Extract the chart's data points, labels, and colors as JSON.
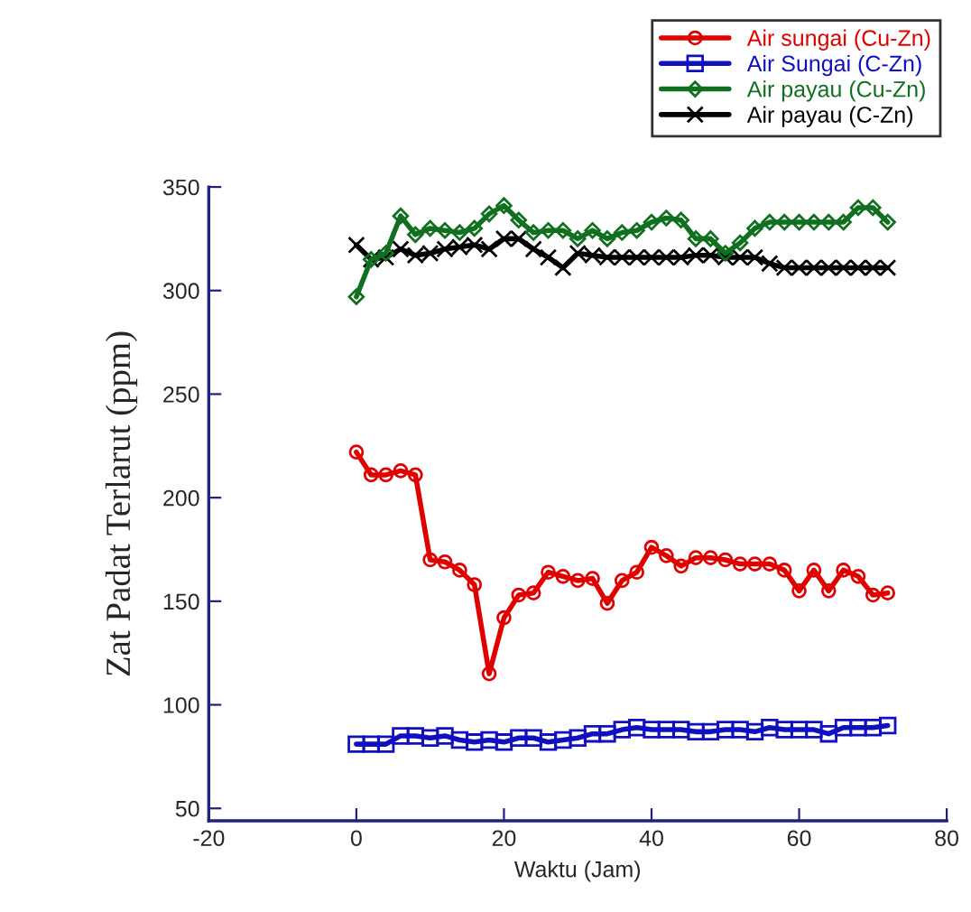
{
  "chart_data": {
    "type": "line",
    "xlabel": "Waktu (Jam)",
    "ylabel": "Zat Padat Terlarut (ppm)",
    "x": [
      0,
      2,
      4,
      6,
      8,
      10,
      12,
      14,
      16,
      18,
      20,
      22,
      24,
      26,
      28,
      30,
      32,
      34,
      36,
      38,
      40,
      42,
      44,
      46,
      48,
      50,
      52,
      54,
      56,
      58,
      60,
      62,
      64,
      66,
      68,
      70,
      72
    ],
    "series": [
      {
        "name": "Air sungai (Cu-Zn)",
        "color": "#e00000",
        "marker": "circle",
        "values": [
          222,
          211,
          211,
          213,
          211,
          170,
          169,
          165,
          158,
          115,
          142,
          153,
          154,
          164,
          162,
          160,
          161,
          149,
          160,
          164,
          176,
          172,
          167,
          171,
          171,
          170,
          168,
          168,
          168,
          165,
          155,
          165,
          155,
          165,
          162,
          153,
          154
        ]
      },
      {
        "name": "Air Sungai (C-Zn)",
        "color": "#1010c0",
        "marker": "square",
        "values": [
          81,
          81,
          81,
          85,
          85,
          84,
          85,
          83,
          82,
          83,
          82,
          84,
          84,
          82,
          83,
          84,
          86,
          86,
          88,
          89,
          88,
          88,
          88,
          87,
          87,
          88,
          88,
          87,
          89,
          88,
          88,
          88,
          86,
          89,
          89,
          89,
          90
        ]
      },
      {
        "name": "Air payau (Cu-Zn)",
        "color": "#107020",
        "marker": "diamond",
        "values": [
          297,
          315,
          318,
          336,
          327,
          330,
          329,
          328,
          330,
          337,
          341,
          334,
          328,
          329,
          329,
          325,
          329,
          325,
          328,
          329,
          333,
          335,
          334,
          325,
          325,
          318,
          323,
          330,
          333,
          333,
          333,
          333,
          333,
          333,
          340,
          340,
          333
        ]
      },
      {
        "name": "Air payau (C-Zn)",
        "color": "#000000",
        "marker": "cross",
        "values": [
          322,
          315,
          316,
          320,
          317,
          318,
          320,
          321,
          322,
          320,
          325,
          325,
          320,
          316,
          311,
          318,
          317,
          316,
          316,
          316,
          316,
          316,
          316,
          317,
          317,
          316,
          316,
          316,
          313,
          311,
          311,
          311,
          311,
          311,
          311,
          311,
          311
        ]
      }
    ],
    "xlim": [
      -20,
      80
    ],
    "xticks": [
      -20,
      0,
      20,
      40,
      60,
      80
    ],
    "ylim": [
      44,
      350
    ],
    "yticks": [
      50,
      100,
      150,
      200,
      250,
      300,
      350
    ],
    "grid": false,
    "legend": "top right",
    "line_style": "solid"
  }
}
